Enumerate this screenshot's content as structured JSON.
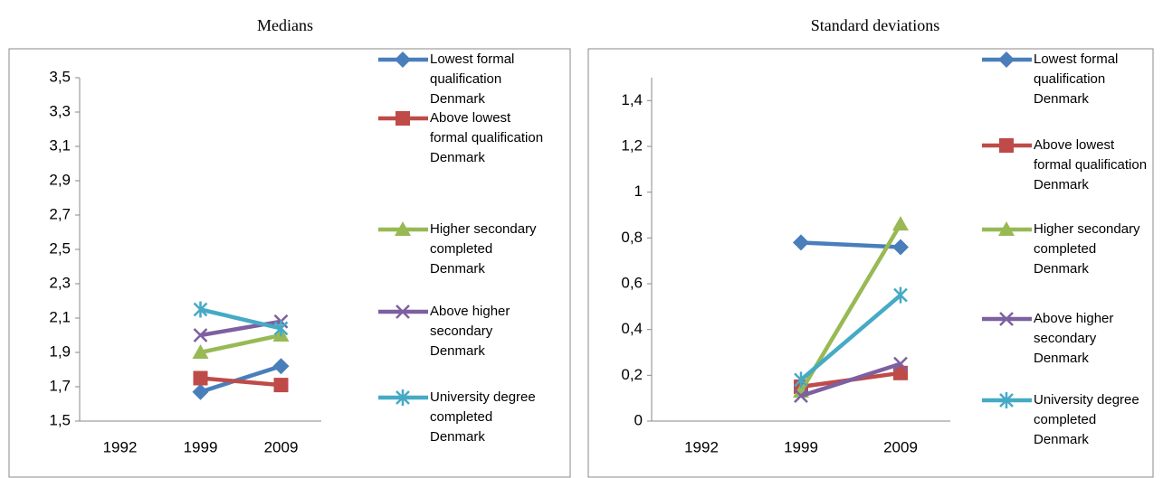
{
  "chart_data": [
    {
      "type": "line",
      "title": "Medians",
      "categories": [
        "1992",
        "1999",
        "2009"
      ],
      "ylim": [
        1.5,
        3.5
      ],
      "yticks": [
        {
          "value": 1.5,
          "label": "1,5"
        },
        {
          "value": 1.7,
          "label": "1,7"
        },
        {
          "value": 1.9,
          "label": "1,9"
        },
        {
          "value": 2.1,
          "label": "2,1"
        },
        {
          "value": 2.3,
          "label": "2,3"
        },
        {
          "value": 2.5,
          "label": "2,5"
        },
        {
          "value": 2.7,
          "label": "2,7"
        },
        {
          "value": 2.9,
          "label": "2,9"
        },
        {
          "value": 3.1,
          "label": "3,1"
        },
        {
          "value": 3.3,
          "label": "3,3"
        },
        {
          "value": 3.5,
          "label": "3,5"
        }
      ],
      "series": [
        {
          "name": "Lowest formal qualification Denmark",
          "color": "#4a7ebb",
          "marker": "diamond",
          "values": [
            null,
            1.67,
            1.82
          ]
        },
        {
          "name": "Above lowest formal qualification Denmark",
          "color": "#be4b48",
          "marker": "square",
          "values": [
            null,
            1.75,
            1.71
          ]
        },
        {
          "name": "Higher secondary completed Denmark",
          "color": "#98b954",
          "marker": "triangle",
          "values": [
            null,
            1.9,
            2.0
          ]
        },
        {
          "name": "Above higher secondary Denmark",
          "color": "#7d60a0",
          "marker": "x",
          "values": [
            null,
            2.0,
            2.08
          ]
        },
        {
          "name": "University degree completed Denmark",
          "color": "#46aac5",
          "marker": "star",
          "values": [
            null,
            2.15,
            2.04
          ]
        }
      ]
    },
    {
      "type": "line",
      "title": "Standard deviations",
      "categories": [
        "1992",
        "1999",
        "2009"
      ],
      "ylim": [
        0,
        1.5
      ],
      "yticks": [
        0,
        {
          "value": 0.2,
          "label": "0,2"
        },
        {
          "value": 0.4,
          "label": "0,4"
        },
        {
          "value": 0.6,
          "label": "0,6"
        },
        {
          "value": 0.8,
          "label": "0,8"
        },
        1,
        {
          "value": 1.2,
          "label": "1,2"
        },
        {
          "value": 1.4,
          "label": "1,4"
        }
      ],
      "series": [
        {
          "name": "Lowest formal qualification Denmark",
          "color": "#4a7ebb",
          "marker": "diamond",
          "values": [
            null,
            0.78,
            0.76
          ]
        },
        {
          "name": "Above lowest formal qualification Denmark",
          "color": "#be4b48",
          "marker": "square",
          "values": [
            null,
            0.15,
            0.21
          ]
        },
        {
          "name": "Higher secondary completed Denmark",
          "color": "#98b954",
          "marker": "triangle",
          "values": [
            null,
            0.13,
            0.86
          ]
        },
        {
          "name": "Above higher secondary Denmark",
          "color": "#7d60a0",
          "marker": "x",
          "values": [
            null,
            0.11,
            0.25
          ]
        },
        {
          "name": "University degree completed Denmark",
          "color": "#46aac5",
          "marker": "star",
          "values": [
            null,
            0.18,
            0.55
          ]
        }
      ]
    }
  ]
}
